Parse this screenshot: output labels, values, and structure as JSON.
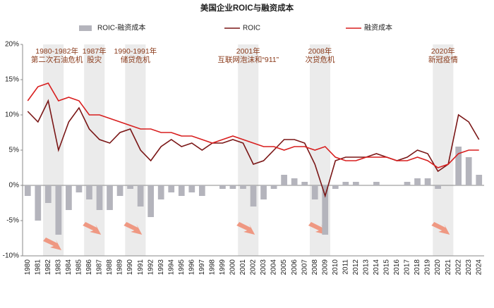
{
  "chart_data": {
    "type": "bar-line",
    "title": "美国企业ROIC与融资成本",
    "categories": [
      "1980",
      "1981",
      "1982",
      "1983",
      "1984",
      "1985",
      "1986",
      "1987",
      "1988",
      "1989",
      "1990",
      "1991",
      "1992",
      "1993",
      "1994",
      "1995",
      "1996",
      "1997",
      "1998",
      "1999",
      "2000",
      "2001",
      "2002",
      "2003",
      "2004",
      "2005",
      "2006",
      "2007",
      "2008",
      "2009",
      "2010",
      "2011",
      "2012",
      "2013",
      "2014",
      "2015",
      "2016",
      "2017",
      "2018",
      "2019",
      "2020",
      "2021",
      "2022",
      "2023",
      "2024"
    ],
    "series": [
      {
        "name": "ROIC-融资成本",
        "type": "bar",
        "color": "#b4b4bc",
        "values": [
          -1.5,
          -5,
          -2.5,
          -7,
          -3.5,
          -1,
          -2,
          -3.5,
          -3.5,
          -1.5,
          -0.5,
          -3,
          -4.5,
          -2,
          -1,
          -1.5,
          -1,
          -1.5,
          0,
          -0.5,
          -0.5,
          -0.5,
          -3,
          -2,
          -0.5,
          1.5,
          1,
          0.5,
          -2,
          -7,
          -0.5,
          0.5,
          0.5,
          0,
          0.5,
          0,
          0,
          0.5,
          1,
          1,
          -0.5,
          0,
          5.5,
          4,
          1.5
        ]
      },
      {
        "name": "ROIC",
        "type": "line",
        "color": "#7a1616",
        "values": [
          10.5,
          9,
          12,
          5,
          9,
          11,
          8,
          6.5,
          6,
          7.5,
          8,
          5,
          3.5,
          5.5,
          6.5,
          5.5,
          6,
          5,
          6,
          6,
          6.5,
          6,
          3,
          3.5,
          5,
          6.5,
          6.5,
          6,
          3,
          -1.5,
          3.5,
          4,
          4,
          4,
          4.5,
          4,
          3.5,
          4,
          5,
          4.5,
          2,
          3,
          10,
          9,
          6.5
        ]
      },
      {
        "name": "融资成本",
        "type": "line",
        "color": "#d81e1e",
        "values": [
          12,
          14,
          14.5,
          12,
          12.5,
          12,
          10,
          10,
          9.5,
          9,
          8.5,
          8,
          8,
          7.5,
          7.5,
          7,
          7,
          6.5,
          6,
          6.5,
          7,
          6.5,
          6,
          5.5,
          5.5,
          5,
          5.5,
          5.5,
          5,
          5.5,
          4,
          3.5,
          3.5,
          4,
          4,
          4,
          3.5,
          3.5,
          4,
          3.5,
          2.5,
          3,
          4.5,
          5,
          5
        ]
      }
    ],
    "ylim": [
      -10,
      20
    ],
    "yticks": [
      {
        "value": -10,
        "label": "-10%"
      },
      {
        "value": -5,
        "label": "-5%"
      },
      {
        "value": 0,
        "label": "0%"
      },
      {
        "value": 5,
        "label": "5%"
      },
      {
        "value": 10,
        "label": "10%"
      },
      {
        "value": 15,
        "label": "15%"
      },
      {
        "value": 20,
        "label": "20%"
      }
    ],
    "shaded": [
      {
        "start": "1982",
        "end": "1983",
        "label": [
          "1980-1982年",
          "第二次石油危机"
        ]
      },
      {
        "start": "1986",
        "end": "1987",
        "label": [
          "1987年",
          "股灾"
        ]
      },
      {
        "start": "1990",
        "end": "1991",
        "label": [
          "1990-1991年",
          "储贷危机"
        ]
      },
      {
        "start": "2001",
        "end": "2002",
        "label": [
          "2001年",
          "互联网泡沫和“911”"
        ]
      },
      {
        "start": "2008",
        "end": "2009",
        "label": [
          "2008年",
          "次贷危机"
        ]
      },
      {
        "start": "2020",
        "end": "2021",
        "label": [
          "2020年",
          "新冠疫情"
        ]
      }
    ]
  }
}
